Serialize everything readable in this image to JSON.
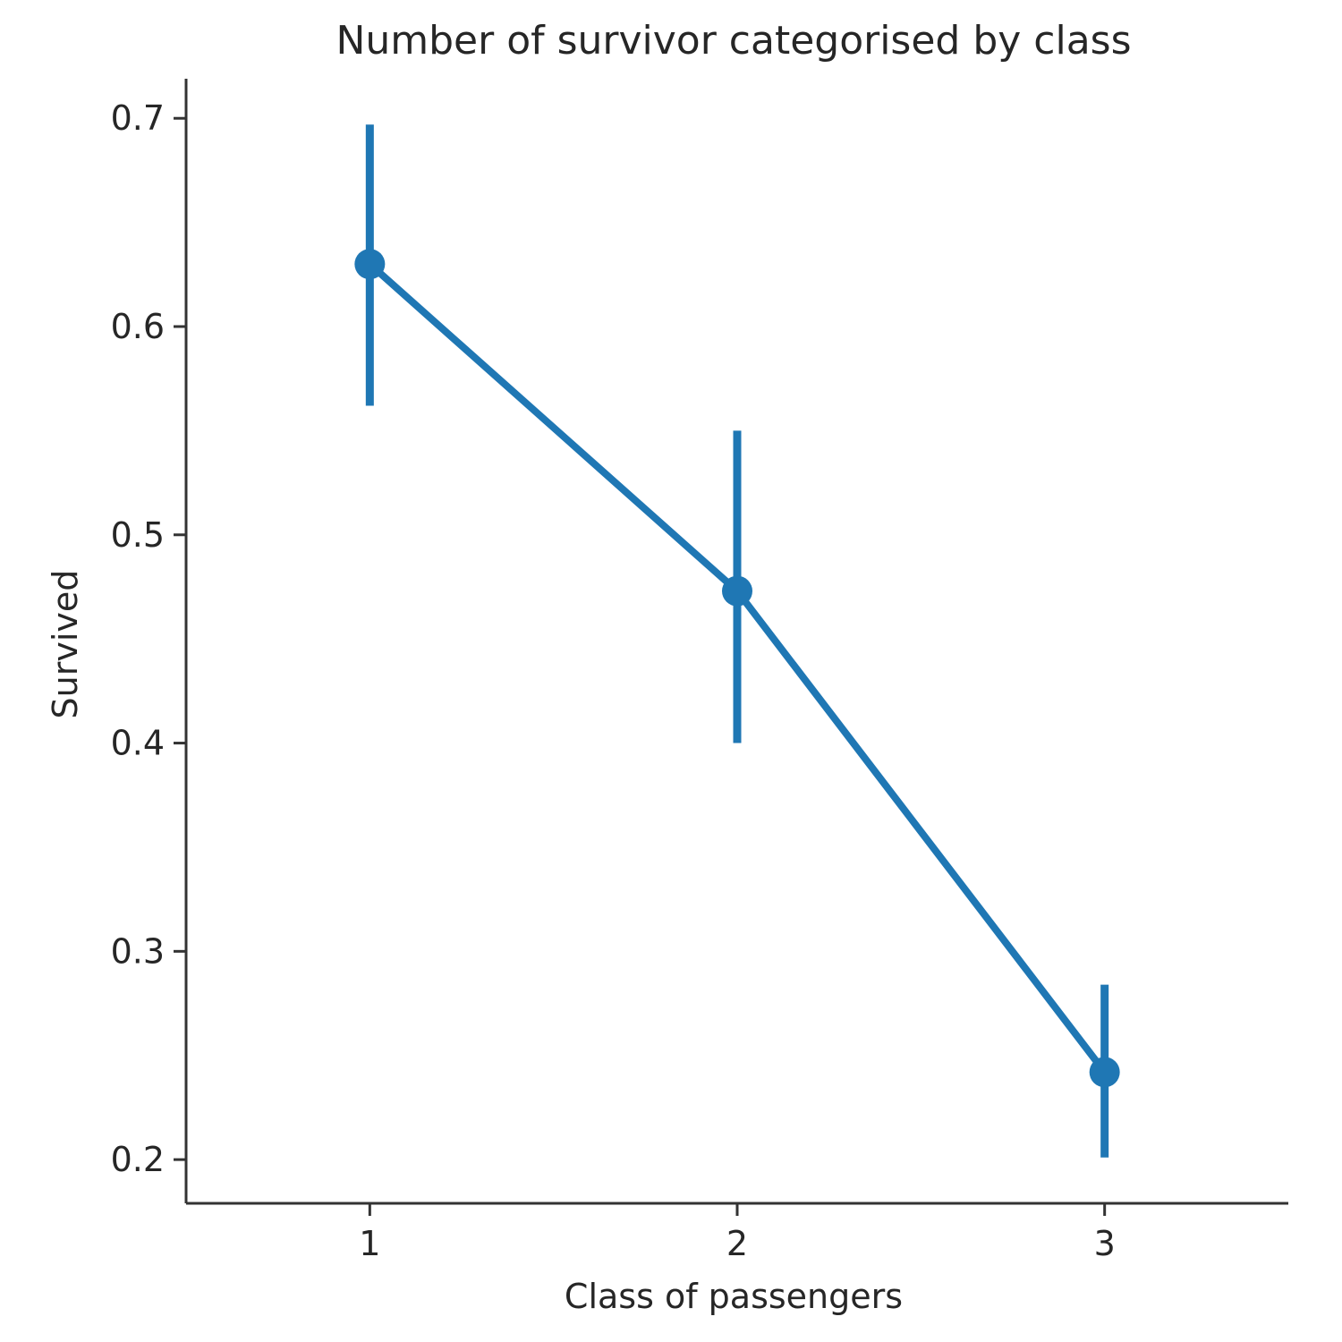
{
  "chart_data": {
    "type": "line",
    "title": "Number of survivor categorised by class",
    "xlabel": "Class of passengers",
    "ylabel": "Survived",
    "categories": [
      "1",
      "2",
      "3"
    ],
    "series": [
      {
        "values": [
          0.63,
          0.473,
          0.242
        ],
        "ci_low": [
          0.562,
          0.4,
          0.201
        ],
        "ci_high": [
          0.697,
          0.55,
          0.284
        ],
        "color": "#1f77b4"
      }
    ],
    "yticks": [
      0.2,
      0.3,
      0.4,
      0.5,
      0.6,
      0.7
    ],
    "ytick_labels": [
      "0.2",
      "0.3",
      "0.4",
      "0.5",
      "0.6",
      "0.7"
    ],
    "ylim": [
      0.179,
      0.719
    ],
    "grid": false,
    "legend": "none"
  }
}
